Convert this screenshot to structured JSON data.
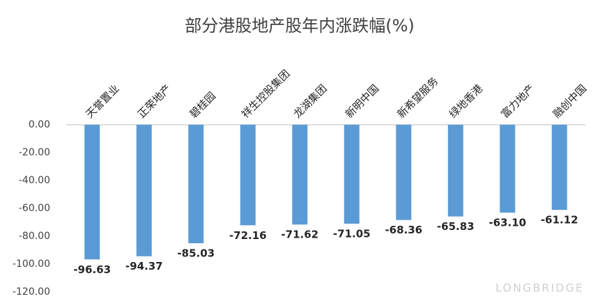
{
  "chart_data": {
    "type": "bar",
    "title": "部分港股地产股年内涨跌幅(%)",
    "categories": [
      "天誉置业",
      "正荣地产",
      "碧桂园",
      "祥生控股集团",
      "龙湖集团",
      "新明中国",
      "新希望服务",
      "绿地香港",
      "富力地产",
      "融创中国"
    ],
    "values": [
      -96.63,
      -94.37,
      -85.03,
      -72.16,
      -71.62,
      -71.05,
      -68.36,
      -65.83,
      -63.1,
      -61.12
    ],
    "value_labels": [
      "-96.63",
      "-94.37",
      "-85.03",
      "-72.16",
      "-71.62",
      "-71.05",
      "-68.36",
      "-65.83",
      "-63.10",
      "-61.12"
    ],
    "color": "#5b9bd5",
    "ylim": [
      -120,
      0
    ],
    "yticks": [
      {
        "value": 0,
        "label": "0.00"
      },
      {
        "value": -20,
        "label": "-20.00"
      },
      {
        "value": -40,
        "label": "-40.00"
      },
      {
        "value": -60,
        "label": "-60.00"
      },
      {
        "value": -80,
        "label": "-80.00"
      },
      {
        "value": -100,
        "label": "-100.00"
      },
      {
        "value": -120,
        "label": "-120.00"
      }
    ],
    "grid": false,
    "watermark": "LONGBRIDGE"
  }
}
